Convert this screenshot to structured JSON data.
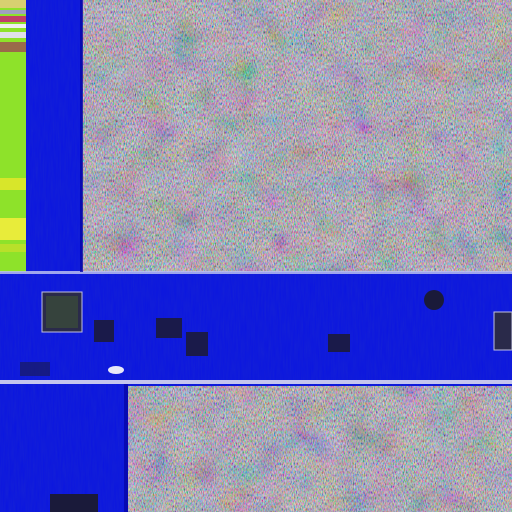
{
  "image": {
    "subject": "micrograph-die-surface",
    "colors": {
      "substrate_blue": "#0a14e0",
      "substrate_blue_dark": "#0606a8",
      "metal_line_light": "#d8d8f0",
      "sparkle_green": "#2ec46a",
      "sparkle_magenta": "#a03a8a",
      "sparkle_olive": "#6e7a3c",
      "sparkle_slate": "#3c4a7a",
      "bar_green": "#8ee22a",
      "bar_yellow": "#d8e62a",
      "pad_dark": "#1a1a3a"
    }
  }
}
